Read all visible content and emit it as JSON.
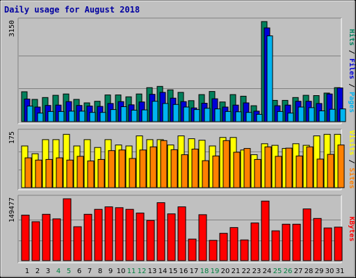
{
  "title": "Daily usage for August 2018",
  "chart_data": [
    {
      "type": "bar",
      "categories": [
        "1",
        "2",
        "3",
        "4",
        "5",
        "6",
        "7",
        "8",
        "9",
        "10",
        "11",
        "12",
        "13",
        "14",
        "15",
        "16",
        "17",
        "18",
        "19",
        "20",
        "21",
        "22",
        "23",
        "24",
        "25",
        "26",
        "27",
        "28",
        "29",
        "30",
        "31"
      ],
      "weekend_days": [
        "4",
        "5",
        "11",
        "12",
        "18",
        "19",
        "25",
        "26"
      ],
      "max_label": "3150",
      "ylim": [
        0,
        3150
      ],
      "series": [
        {
          "name": "Hits",
          "color": "#00805c",
          "values": [
            940,
            700,
            760,
            830,
            870,
            700,
            590,
            640,
            840,
            840,
            780,
            870,
            1070,
            1110,
            1000,
            920,
            660,
            850,
            950,
            620,
            850,
            800,
            500,
            3150,
            670,
            670,
            760,
            830,
            820,
            900,
            1070
          ]
        },
        {
          "name": "Files",
          "color": "#0000d8",
          "values": [
            710,
            460,
            510,
            520,
            630,
            510,
            490,
            480,
            570,
            630,
            530,
            620,
            860,
            920,
            740,
            630,
            430,
            580,
            720,
            460,
            520,
            590,
            330,
            2950,
            500,
            520,
            640,
            640,
            570,
            870,
            1060
          ]
        },
        {
          "name": "Pages",
          "color": "#00b4f0",
          "values": [
            490,
            270,
            320,
            320,
            330,
            330,
            290,
            290,
            380,
            470,
            360,
            370,
            640,
            570,
            540,
            460,
            380,
            420,
            400,
            320,
            310,
            290,
            230,
            2700,
            320,
            270,
            460,
            440,
            340,
            390,
            400
          ]
        }
      ],
      "side_label": [
        "Pages",
        "Files",
        "Hits"
      ]
    },
    {
      "type": "bar",
      "categories": [
        "1",
        "2",
        "3",
        "4",
        "5",
        "6",
        "7",
        "8",
        "9",
        "10",
        "11",
        "12",
        "13",
        "14",
        "15",
        "16",
        "17",
        "18",
        "19",
        "20",
        "21",
        "22",
        "23",
        "24",
        "25",
        "26",
        "27",
        "28",
        "29",
        "30",
        "31"
      ],
      "max_label": "175",
      "ylim": [
        0,
        175
      ],
      "series": [
        {
          "name": "Visits",
          "color": "#ffff00",
          "values": [
            133,
            108,
            153,
            153,
            170,
            133,
            153,
            128,
            153,
            136,
            133,
            165,
            153,
            153,
            136,
            165,
            156,
            151,
            133,
            160,
            160,
            120,
            105,
            140,
            135,
            125,
            140,
            135,
            165,
            170,
            170
          ]
        },
        {
          "name": "Sites",
          "color": "#ff8000",
          "values": [
            95,
            88,
            90,
            95,
            88,
            100,
            85,
            90,
            118,
            120,
            93,
            120,
            130,
            150,
            121,
            105,
            123,
            86,
            101,
            150,
            113,
            125,
            90,
            130,
            100,
            126,
            101,
            130,
            91,
            106,
            136
          ]
        }
      ],
      "side_label": [
        "Sites",
        "Visits"
      ]
    },
    {
      "type": "bar",
      "categories": [
        "1",
        "2",
        "3",
        "4",
        "5",
        "6",
        "7",
        "8",
        "9",
        "10",
        "11",
        "12",
        "13",
        "14",
        "15",
        "16",
        "17",
        "18",
        "19",
        "20",
        "21",
        "22",
        "23",
        "24",
        "25",
        "26",
        "27",
        "28",
        "29",
        "30",
        "31"
      ],
      "max_label": "149477",
      "ylim": [
        0,
        149477
      ],
      "series": [
        {
          "name": "KBytes",
          "color": "#ff0000",
          "values": [
            110000,
            94000,
            112000,
            101000,
            149477,
            82000,
            112000,
            124000,
            130000,
            128000,
            124000,
            115000,
            97000,
            140000,
            113000,
            130000,
            52000,
            111000,
            49000,
            66000,
            80000,
            50000,
            91000,
            144000,
            72000,
            88000,
            88000,
            125000,
            102000,
            79000,
            81000
          ]
        }
      ],
      "side_label": [
        "KBytes"
      ]
    }
  ]
}
